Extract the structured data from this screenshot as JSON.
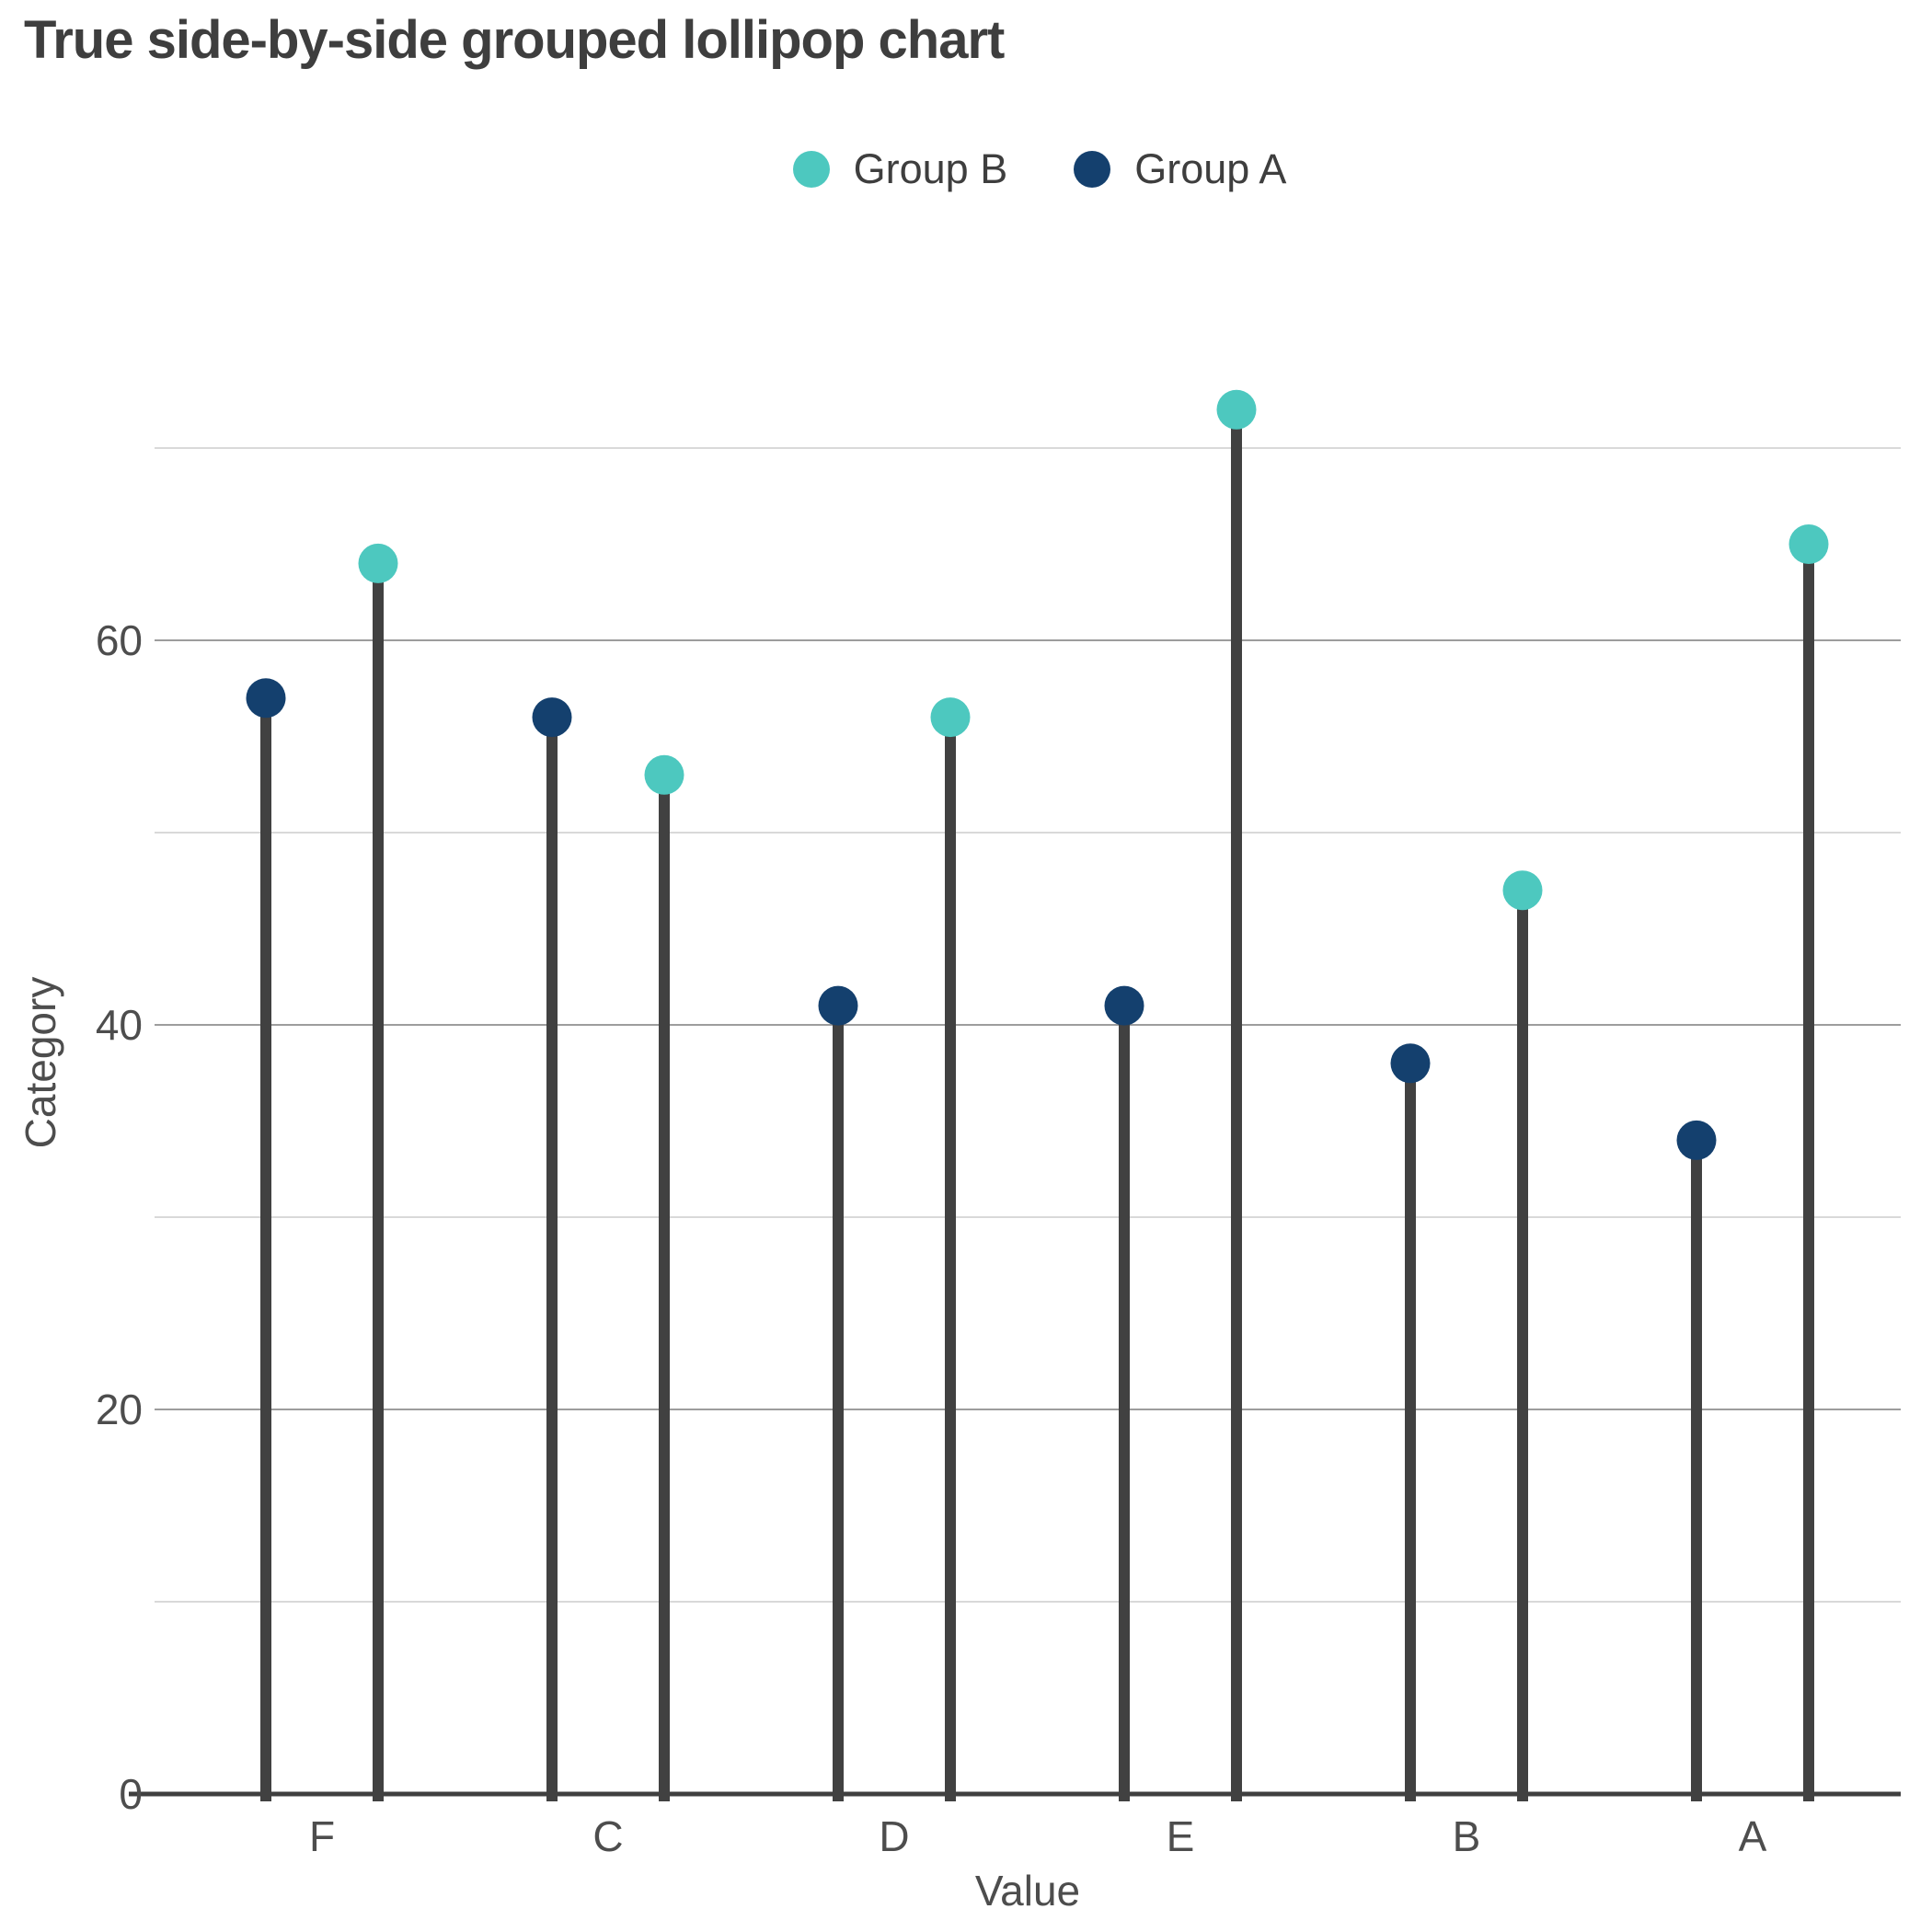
{
  "title": "True side-by-side grouped lollipop chart",
  "legend": [
    {
      "label": "Group B",
      "color": "#4dc8bf"
    },
    {
      "label": "Group A",
      "color": "#14406e"
    }
  ],
  "axes": {
    "x_label": "Value",
    "y_label": "Category",
    "y_tick_labels": [
      "0",
      "20",
      "40",
      "60"
    ]
  },
  "chart_data": {
    "type": "lollipop-grouped",
    "orientation": "vertical",
    "title": "True side-by-side grouped lollipop chart",
    "xlabel": "Value",
    "ylabel": "Category",
    "categories": [
      "F",
      "C",
      "D",
      "E",
      "B",
      "A"
    ],
    "series": [
      {
        "name": "Group A",
        "color": "#14406e",
        "values": [
          57,
          56,
          41,
          41,
          38,
          34
        ]
      },
      {
        "name": "Group B",
        "color": "#4dc8bf",
        "values": [
          64,
          53,
          56,
          72,
          47,
          65
        ]
      }
    ],
    "ylim": [
      0,
      75
    ],
    "yticks": [
      0,
      20,
      40,
      60
    ],
    "minor_gridlines": [
      10,
      30,
      50,
      70
    ],
    "grid": "horizontal",
    "legend_position": "top-center",
    "stem_color": "#414141",
    "axis_line_color": "#3f3f3f",
    "major_grid_color": "#7d7d7d",
    "minor_grid_color": "#d9d9d9",
    "tick_text_color": "#4d4d4d"
  }
}
